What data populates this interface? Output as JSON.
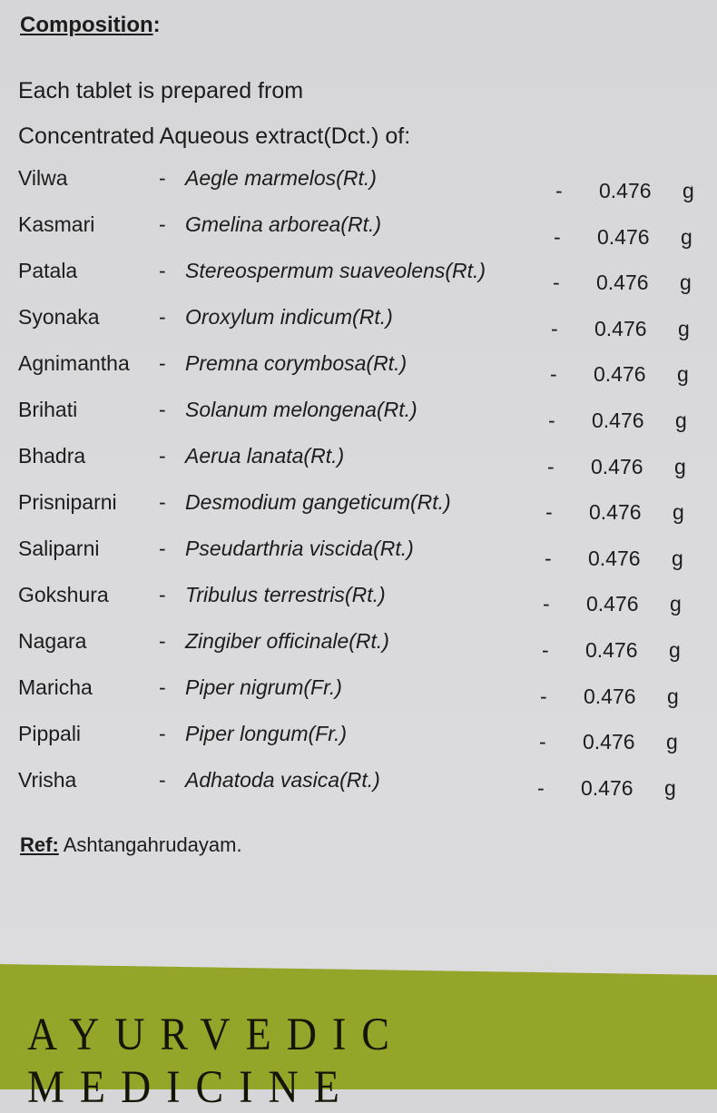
{
  "composition": {
    "heading": "Composition",
    "heading_suffix": ":",
    "intro_line1": "Each tablet is prepared from",
    "intro_line2": "Concentrated Aqueous extract(Dct.) of:",
    "ingredients": [
      {
        "name": "Vilwa",
        "latin": "Aegle marmelos(Rt.)",
        "qty": "0.476",
        "unit": "g"
      },
      {
        "name": "Kasmari",
        "latin": "Gmelina arborea(Rt.)",
        "qty": "0.476",
        "unit": "g"
      },
      {
        "name": "Patala",
        "latin": "Stereospermum suaveolens(Rt.)",
        "qty": "0.476",
        "unit": "g"
      },
      {
        "name": "Syonaka",
        "latin": "Oroxylum indicum(Rt.)",
        "qty": "0.476",
        "unit": "g"
      },
      {
        "name": "Agnimantha",
        "latin": "Premna corymbosa(Rt.)",
        "qty": "0.476",
        "unit": "g"
      },
      {
        "name": "Brihati",
        "latin": "Solanum melongena(Rt.)",
        "qty": "0.476",
        "unit": "g"
      },
      {
        "name": "Bhadra",
        "latin": "Aerua lanata(Rt.)",
        "qty": "0.476",
        "unit": "g"
      },
      {
        "name": "Prisniparni",
        "latin": "Desmodium gangeticum(Rt.)",
        "qty": "0.476",
        "unit": "g"
      },
      {
        "name": "Saliparni",
        "latin": "Pseudarthria viscida(Rt.)",
        "qty": "0.476",
        "unit": "g"
      },
      {
        "name": "Gokshura",
        "latin": "Tribulus terrestris(Rt.)",
        "qty": "0.476",
        "unit": "g"
      },
      {
        "name": "Nagara",
        "latin": "Zingiber officinale(Rt.)",
        "qty": "0.476",
        "unit": "g"
      },
      {
        "name": "Maricha",
        "latin": "Piper nigrum(Fr.)",
        "qty": "0.476",
        "unit": "g"
      },
      {
        "name": "Pippali",
        "latin": "Piper longum(Fr.)",
        "qty": "0.476",
        "unit": "g"
      },
      {
        "name": "Vrisha",
        "latin": "Adhatoda vasica(Rt.)",
        "qty": "0.476",
        "unit": "g"
      }
    ],
    "separator": "-"
  },
  "ref": {
    "label": "Ref:",
    "value": "Ashtangahrudayam."
  },
  "band": {
    "text": "AYURVEDIC MEDICINE",
    "color": "#95a52a"
  }
}
